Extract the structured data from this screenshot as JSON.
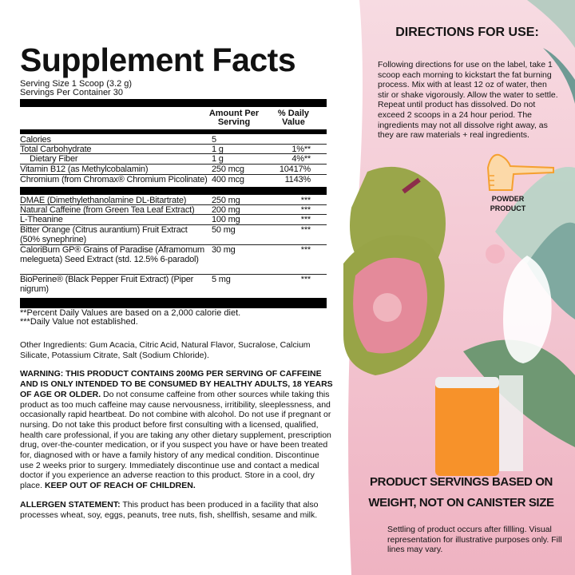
{
  "facts": {
    "title": "Supplement Facts",
    "serving_size": "Serving Size 1 Scoop (3.2 g)",
    "servings_per_container": "Servings Per Container 30",
    "col_amount": "Amount Per Serving",
    "col_dv": "% Daily Value",
    "rows": [
      {
        "name": "Calories",
        "amount": "5",
        "dv": ""
      },
      {
        "name": "Total Carbohydrate",
        "amount": "1 g",
        "dv": "1%**"
      },
      {
        "name": "Dietary Fiber",
        "amount": "1 g",
        "dv": "4%**"
      },
      {
        "name": "Vitamin B12 (as Methylcobalamin)",
        "amount": "250 mcg",
        "dv": "10417%"
      },
      {
        "name": "Chromium (from Chromax® Chromium Picolinate)",
        "amount": "400 mcg",
        "dv": "1143%"
      }
    ],
    "blend": [
      {
        "name": "DMAE (Dimethylethanolamine DL-Bitartrate)",
        "amount": "250 mg",
        "dv": "***"
      },
      {
        "name": "Natural Caffeine (from Green Tea Leaf Extract)",
        "amount": "200 mg",
        "dv": "***"
      },
      {
        "name": "L-Theanine",
        "amount": "100 mg",
        "dv": "***"
      },
      {
        "name": "Bitter Orange (Citrus aurantium) Fruit Extract (50% synephrine)",
        "amount": "50 mg",
        "dv": "***"
      },
      {
        "name": "CaloriBurn GP® Grains of Paradise (Aframomum melegueta) Seed Extract (std. 12.5% 6-paradol)",
        "amount": "30 mg",
        "dv": "***"
      },
      {
        "name": "BioPerine® (Black Pepper Fruit Extract) (Piper nigrum)",
        "amount": "5 mg",
        "dv": "***"
      }
    ],
    "footnote1": "**Percent Daily Values are based on a 2,000 calorie diet.",
    "footnote2": "***Daily Value not established."
  },
  "other_ingredients": "Other Ingredients: Gum Acacia, Citric Acid, Natural Flavor, Sucralose, Calcium Silicate, Potassium Citrate, Salt (Sodium Chloride).",
  "warning": {
    "bold": "WARNING: THIS PRODUCT CONTAINS 200MG PER SERVING OF CAFFEINE AND IS ONLY INTENDED TO BE CONSUMED BY HEALTHY ADULTS, 18 YEARS OF AGE OR OLDER.",
    "text": " Do not consume caffeine from other sources while taking this product as too much caffeine may cause nervousness, irritibility, sleeplessness, and occasionally rapid heartbeat. Do not combine with alcohol. Do not use if pregnant or nursing. Do not take this product before first consulting with a licensed, qualified, health care professional, if you are taking any other dietary supplement, prescription drug, over-the-counter medication, or if you suspect you have or have been treated for, diagnosed with or have a family history of any medical condition. Discontinue use 2 weeks prior to surgery. Immediately discontinue use and contact a medical doctor if you experience an adverse reaction to this product. Store in a cool, dry place. ",
    "bold_end": "KEEP OUT OF REACH OF CHILDREN."
  },
  "allergen": {
    "label": "ALLERGEN STATEMENT:",
    "text": " This product has been produced in a facility that also processes wheat, soy, eggs, peanuts, tree nuts, fish, shellfish, sesame and milk."
  },
  "directions": {
    "title": "DIRECTIONS FOR USE:",
    "text": "Following directions for use on the label, take 1 scoop each morning to kickstart the fat burning process. Mix with at least 12 oz of water, then stir or shake vigorously. Allow the water to settle. Repeat until product has dissolved. Do not exceed 2 scoops in a 24 hour period. The ingredients may not all dissolve right away, as they are raw materials + real ingredients.",
    "icon": "scoop-icon",
    "icon_label_1": "POWDER",
    "icon_label_2": "PRODUCT"
  },
  "servings_note": {
    "heading_1": "PRODUCT SERVINGS BASED ON",
    "heading_2": "WEIGHT, NOT ON CANISTER SIZE",
    "text": "Settling of product occurs after fillling. Visual representation for illustrative purposes only. Fill lines may vary."
  },
  "colors": {
    "pink": "#f3c6d2",
    "pink_dark": "#eeb0c0",
    "scoop_orange": "#f5a030",
    "canister_orange": "#f7922a",
    "guava_green": "#9aa64a",
    "guava_flesh": "#e48a9a",
    "leaf": "#a9c9bb"
  }
}
